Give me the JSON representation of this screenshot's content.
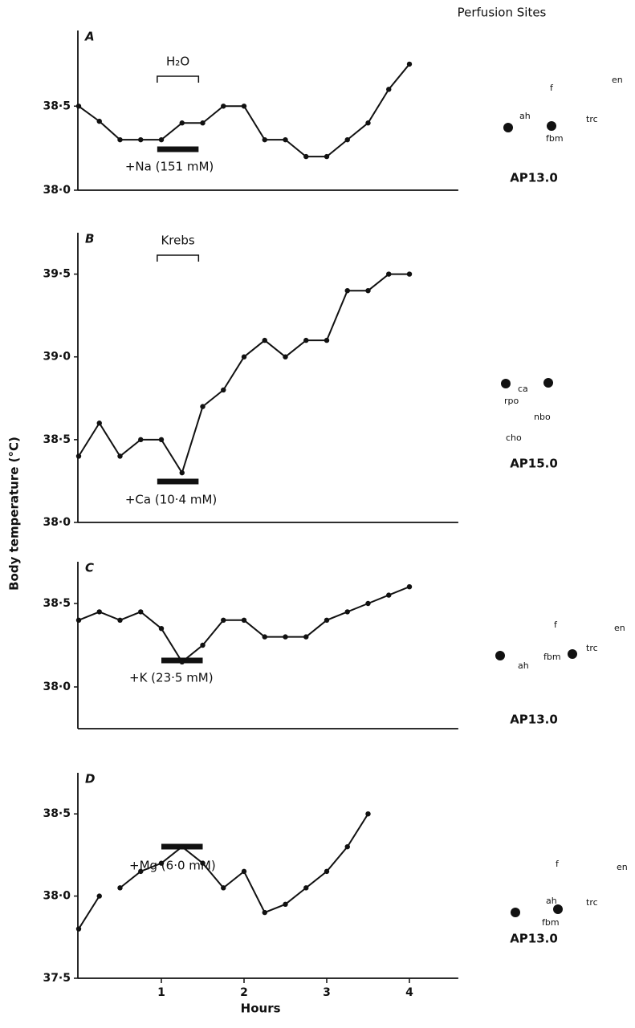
{
  "chart_data": [
    {
      "type": "line",
      "label": "A",
      "color": "#111",
      "x": [
        0,
        0.25,
        0.5,
        0.75,
        1,
        1.25,
        1.5,
        1.75,
        2,
        2.25,
        2.5,
        2.75,
        3,
        3.25,
        3.5,
        3.75,
        4
      ],
      "values": [
        38.5,
        38.41,
        38.3,
        38.3,
        38.3,
        38.4,
        38.4,
        38.5,
        38.5,
        38.3,
        38.3,
        38.2,
        38.2,
        38.3,
        38.4,
        38.6,
        38.75
      ],
      "xlim": [
        0,
        4.3
      ],
      "ylim": [
        38.0,
        38.95
      ],
      "yticks": [
        {
          "value": 38.0,
          "label": "38·0"
        },
        {
          "value": 38.5,
          "label": "38·5"
        }
      ],
      "bracket": {
        "label": "H₂O",
        "start": 0.95,
        "end": 1.45
      },
      "treatment": {
        "label": "+Na (151 mM)",
        "start": 0.95,
        "end": 1.45
      }
    },
    {
      "type": "line",
      "label": "B",
      "color": "#111",
      "x": [
        0,
        0.25,
        0.5,
        0.75,
        1,
        1.25,
        1.5,
        1.75,
        2,
        2.25,
        2.5,
        2.75,
        3,
        3.25,
        3.5,
        3.75,
        4
      ],
      "values": [
        38.4,
        38.6,
        38.4,
        38.5,
        38.5,
        38.3,
        38.7,
        38.8,
        39.0,
        39.1,
        39.0,
        39.1,
        39.1,
        39.4,
        39.4,
        39.5,
        39.5
      ],
      "xlim": [
        0,
        4.3
      ],
      "ylim": [
        38.0,
        39.75
      ],
      "yticks": [
        {
          "value": 38.0,
          "label": "38·0"
        },
        {
          "value": 38.5,
          "label": "38·5"
        },
        {
          "value": 39.0,
          "label": "39·0"
        },
        {
          "value": 39.5,
          "label": "39·5"
        }
      ],
      "bracket": {
        "label": "Krebs",
        "start": 0.95,
        "end": 1.45
      },
      "treatment": {
        "label": "+Ca (10·4 mM)",
        "start": 0.95,
        "end": 1.45
      },
      "y_label": "Body temperature (°C)"
    },
    {
      "type": "line",
      "label": "C",
      "color": "#111",
      "x": [
        0,
        0.25,
        0.5,
        0.75,
        1,
        1.25,
        1.5,
        1.75,
        2,
        2.25,
        2.5,
        2.75,
        3,
        3.25,
        3.5,
        3.75,
        4
      ],
      "values": [
        38.4,
        38.45,
        38.4,
        38.45,
        38.35,
        38.15,
        38.25,
        38.4,
        38.4,
        38.3,
        38.3,
        38.3,
        38.4,
        38.45,
        38.5,
        38.55,
        38.6
      ],
      "xlim": [
        0,
        4.3
      ],
      "ylim": [
        37.75,
        38.75
      ],
      "yticks": [
        {
          "value": 38.0,
          "label": "38·0"
        },
        {
          "value": 38.5,
          "label": "38·5"
        }
      ],
      "treatment": {
        "label": "+K (23·5 mM)",
        "start": 1.0,
        "end": 1.5
      }
    },
    {
      "type": "line",
      "label": "D",
      "color": "#111",
      "x": [
        0,
        0.25,
        0.375,
        0.5,
        0.75,
        1,
        1.25,
        1.5,
        1.75,
        2,
        2.25,
        2.5,
        2.75,
        3,
        3.25,
        3.5,
        3.75
      ],
      "values": [
        37.8,
        38.0,
        null,
        38.05,
        38.15,
        38.2,
        38.3,
        38.2,
        38.05,
        38.15,
        37.9,
        37.95,
        38.05,
        38.15,
        38.3,
        38.5,
        null
      ],
      "xlim": [
        0,
        4.3
      ],
      "ylim": [
        37.5,
        38.75
      ],
      "xticks": [
        1,
        2,
        3,
        4
      ],
      "yticks": [
        {
          "value": 37.5,
          "label": "37·5"
        },
        {
          "value": 38.0,
          "label": "38·0"
        },
        {
          "value": 38.5,
          "label": "38·5"
        }
      ],
      "treatment": {
        "label": "+Mg (6·0 mM)",
        "start": 1.0,
        "end": 1.5
      },
      "x_label": "Hours"
    }
  ],
  "diagrams": {
    "title": "Perfusion Sites",
    "sections": [
      {
        "section": "AP13.0",
        "labels": [
          "en",
          "f",
          "ah",
          "trc",
          "fbm"
        ]
      },
      {
        "section": "AP15.0",
        "labels": [
          "ca",
          "rpo",
          "nbo",
          "cho"
        ]
      },
      {
        "section": "AP13.0",
        "labels": [
          "en",
          "f",
          "ah",
          "trc",
          "fbm"
        ]
      },
      {
        "section": "AP13.0",
        "labels": [
          "en",
          "f",
          "ah",
          "trc",
          "fbm"
        ]
      }
    ]
  }
}
